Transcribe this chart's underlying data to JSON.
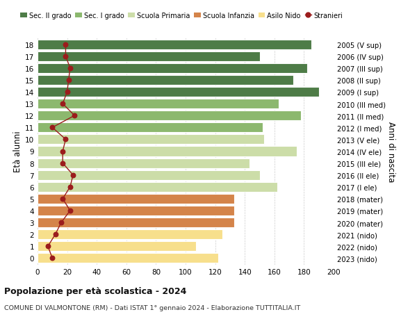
{
  "ages": [
    0,
    1,
    2,
    3,
    4,
    5,
    6,
    7,
    8,
    9,
    10,
    11,
    12,
    13,
    14,
    15,
    16,
    17,
    18
  ],
  "bar_values": [
    122,
    107,
    125,
    133,
    133,
    133,
    162,
    150,
    143,
    175,
    153,
    152,
    178,
    163,
    190,
    173,
    182,
    150,
    185
  ],
  "stranieri": [
    10,
    7,
    12,
    16,
    22,
    17,
    22,
    24,
    17,
    17,
    19,
    10,
    25,
    17,
    20,
    21,
    22,
    19,
    19
  ],
  "right_labels": [
    "2023 (nido)",
    "2022 (nido)",
    "2021 (nido)",
    "2020 (mater)",
    "2019 (mater)",
    "2018 (mater)",
    "2017 (I ele)",
    "2016 (II ele)",
    "2015 (III ele)",
    "2014 (IV ele)",
    "2013 (V ele)",
    "2012 (I med)",
    "2011 (II med)",
    "2010 (III med)",
    "2009 (I sup)",
    "2008 (II sup)",
    "2007 (III sup)",
    "2006 (IV sup)",
    "2005 (V sup)"
  ],
  "bar_colors": [
    "#f7df8c",
    "#f7df8c",
    "#f7df8c",
    "#d4844a",
    "#d4844a",
    "#d4844a",
    "#ccdda8",
    "#ccdda8",
    "#ccdda8",
    "#ccdda8",
    "#ccdda8",
    "#8cb86e",
    "#8cb86e",
    "#8cb86e",
    "#4e7c47",
    "#4e7c47",
    "#4e7c47",
    "#4e7c47",
    "#4e7c47"
  ],
  "legend_labels": [
    "Sec. II grado",
    "Sec. I grado",
    "Scuola Primaria",
    "Scuola Infanzia",
    "Asilo Nido",
    "Stranieri"
  ],
  "legend_colors": [
    "#4e7c47",
    "#8cb86e",
    "#ccdda8",
    "#d4844a",
    "#f7df8c",
    "#9b1c1c"
  ],
  "ylabel": "Età alunni",
  "right_ylabel": "Anni di nascita",
  "title": "Popolazione per età scolastica - 2024",
  "subtitle": "COMUNE DI VALMONTONE (RM) - Dati ISTAT 1° gennaio 2024 - Elaborazione TUTTITALIA.IT",
  "xlim": [
    0,
    200
  ],
  "xticks": [
    0,
    20,
    40,
    60,
    80,
    100,
    120,
    140,
    160,
    180,
    200
  ],
  "stranieri_color": "#9b1c1c",
  "bg_color": "#ffffff",
  "grid_color": "#cccccc"
}
